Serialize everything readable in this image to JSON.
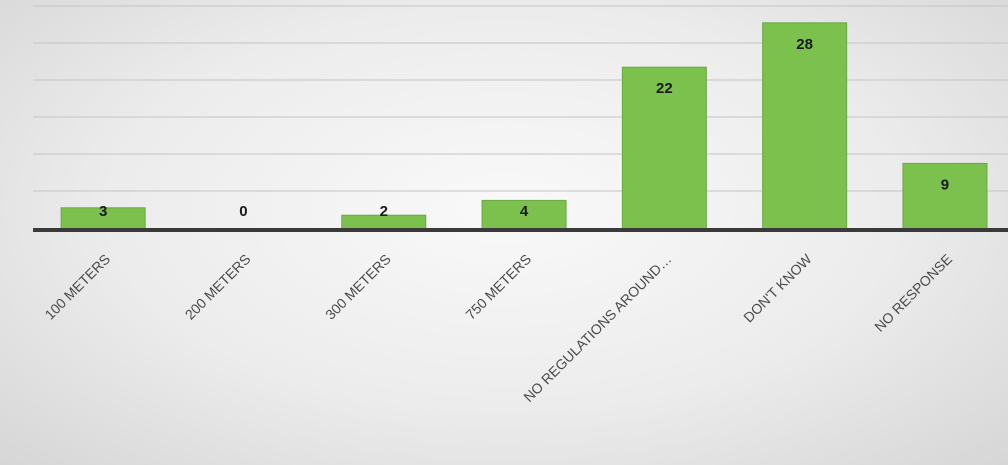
{
  "chart_data": {
    "type": "bar",
    "categories": [
      "100 METERS",
      "200 METERS",
      "300 METERS",
      "750 METERS",
      "NO REGULATIONS AROUND…",
      "DON'T KNOW",
      "NO RESPONSE"
    ],
    "values": [
      3,
      0,
      2,
      4,
      22,
      28,
      9
    ],
    "ylim": [
      0,
      30
    ],
    "grid": true,
    "colors": {
      "bar": "#7cc04e",
      "axis": "#3a3a3a",
      "grid": "#c4c4c4"
    }
  }
}
